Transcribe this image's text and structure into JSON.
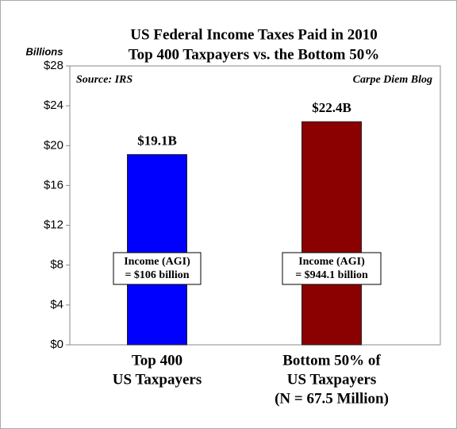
{
  "chart_data": {
    "type": "bar",
    "title": "US Federal Income Taxes Paid in 2010",
    "subtitle": "Top 400 Taxpayers vs. the Bottom 50%",
    "y_label": "Billions",
    "source": "Source: IRS",
    "credit": "Carpe Diem Blog",
    "categories": [
      [
        "Top 400",
        "US Taxpayers"
      ],
      [
        "Bottom 50% of",
        "US Taxpayers",
        "(N = 67.5 Million)"
      ]
    ],
    "values": [
      19.1,
      22.4
    ],
    "value_labels": [
      "$19.1B",
      "$22.4B"
    ],
    "colors": [
      "#0000ff",
      "#8b0000"
    ],
    "bar_annotations": [
      [
        "Income (AGI)",
        "= $106 billion"
      ],
      [
        "Income (AGI)",
        "= $944.1 billion"
      ]
    ],
    "ylim": [
      0,
      28
    ],
    "yticks": [
      {
        "value": 0,
        "label": "$0"
      },
      {
        "value": 4,
        "label": "$4"
      },
      {
        "value": 8,
        "label": "$8"
      },
      {
        "value": 12,
        "label": "$12"
      },
      {
        "value": 16,
        "label": "$16"
      },
      {
        "value": 20,
        "label": "$20"
      },
      {
        "value": 24,
        "label": "$24"
      },
      {
        "value": 28,
        "label": "$28"
      }
    ]
  }
}
